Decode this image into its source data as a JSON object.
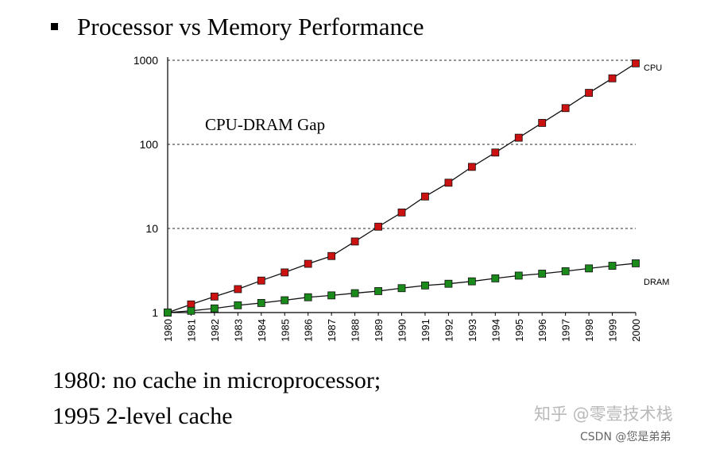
{
  "chart_data": {
    "type": "line",
    "title": "Processor vs Memory Performance",
    "annotation": "CPU-DRAM Gap",
    "xlabel": "",
    "ylabel": "",
    "yscale": "log",
    "ylim": [
      1,
      1000
    ],
    "yticks": [
      "1",
      "10",
      "100",
      "1000"
    ],
    "grid": "dotted horizontal",
    "categories": [
      "1980",
      "1981",
      "1982",
      "1983",
      "1984",
      "1985",
      "1986",
      "1987",
      "1988",
      "1989",
      "1990",
      "1991",
      "1992",
      "1993",
      "1994",
      "1995",
      "1996",
      "1997",
      "1998",
      "1999",
      "2000"
    ],
    "series": [
      {
        "name": "CPU",
        "color": "#cc1111",
        "values": [
          1,
          1.25,
          1.55,
          1.9,
          2.4,
          3.0,
          3.8,
          4.7,
          7.0,
          10.5,
          15.5,
          24,
          35,
          54,
          80,
          120,
          180,
          270,
          410,
          610,
          920
        ]
      },
      {
        "name": "DRAM",
        "color": "#1a8a1a",
        "values": [
          1,
          1.05,
          1.12,
          1.22,
          1.3,
          1.4,
          1.52,
          1.6,
          1.7,
          1.8,
          1.95,
          2.1,
          2.2,
          2.35,
          2.55,
          2.75,
          2.9,
          3.1,
          3.35,
          3.6,
          3.85
        ]
      }
    ]
  },
  "notes": {
    "line1": "1980: no cache in microprocessor;",
    "line2": "1995 2-level cache"
  },
  "watermark": {
    "zhihu": "知乎 @零壹技术栈",
    "csdn": "CSDN @您是弟弟"
  }
}
